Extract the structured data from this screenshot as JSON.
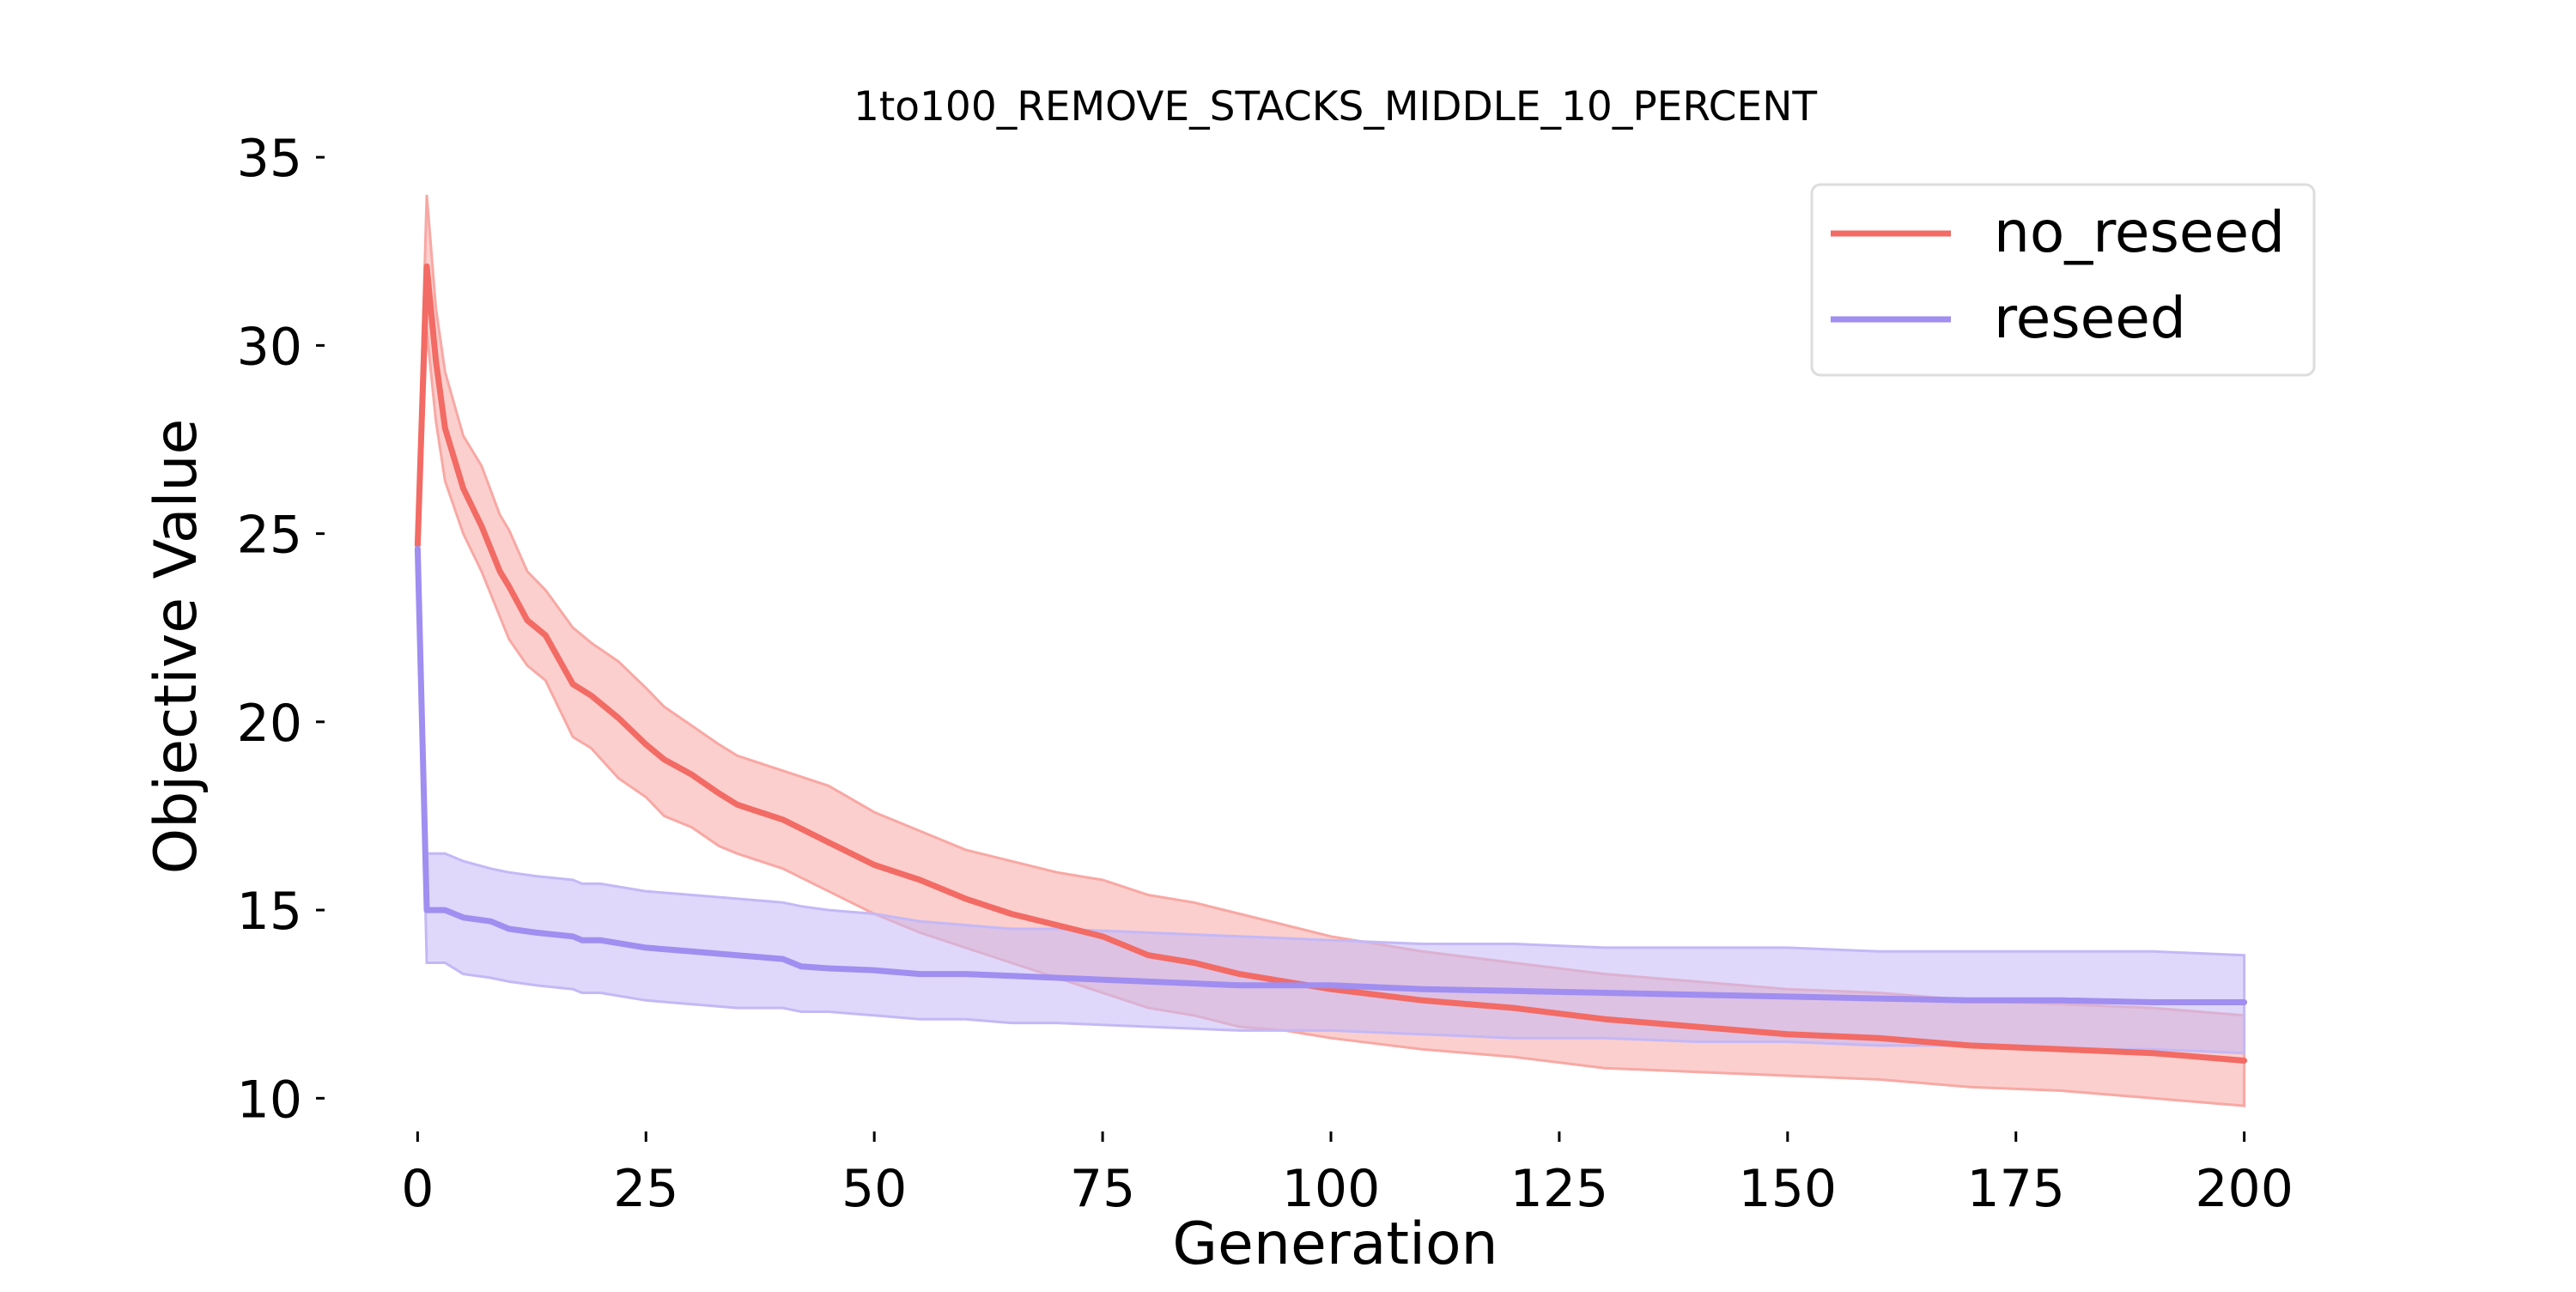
{
  "chart_data": {
    "type": "line",
    "title": "1to100_REMOVE_STACKS_MIDDLE_10_PERCENT",
    "xlabel": "Generation",
    "ylabel": "Objective Value",
    "xlim": [
      -10,
      210
    ],
    "ylim": [
      9.3,
      35.3
    ],
    "xticks": [
      0,
      25,
      50,
      75,
      100,
      125,
      150,
      175,
      200
    ],
    "yticks": [
      10,
      15,
      20,
      25,
      30,
      35
    ],
    "grid": false,
    "legend_position": "top-right",
    "series": [
      {
        "name": "no_reseed",
        "color": "#f26b64",
        "band_color": "#f8a8a4",
        "x": [
          0,
          1,
          2,
          3,
          5,
          7,
          9,
          10,
          12,
          14,
          17,
          19,
          22,
          25,
          27,
          30,
          33,
          35,
          40,
          45,
          50,
          55,
          60,
          65,
          70,
          75,
          80,
          85,
          90,
          95,
          100,
          110,
          120,
          130,
          140,
          150,
          160,
          170,
          180,
          190,
          200
        ],
        "mean": [
          24.7,
          32.1,
          29.6,
          27.8,
          26.2,
          25.2,
          24.0,
          23.6,
          22.7,
          22.3,
          21.0,
          20.7,
          20.1,
          19.4,
          19.0,
          18.6,
          18.1,
          17.8,
          17.4,
          16.8,
          16.2,
          15.8,
          15.3,
          14.9,
          14.6,
          14.3,
          13.8,
          13.6,
          13.3,
          13.1,
          12.9,
          12.6,
          12.4,
          12.1,
          11.9,
          11.7,
          11.6,
          11.4,
          11.3,
          11.2,
          11.0
        ],
        "upper": [
          25.5,
          34.0,
          31.0,
          29.3,
          27.6,
          26.8,
          25.5,
          25.1,
          24.0,
          23.5,
          22.5,
          22.1,
          21.6,
          20.9,
          20.4,
          19.9,
          19.4,
          19.1,
          18.7,
          18.3,
          17.6,
          17.1,
          16.6,
          16.3,
          16.0,
          15.8,
          15.4,
          15.2,
          14.9,
          14.6,
          14.3,
          13.9,
          13.6,
          13.3,
          13.1,
          12.9,
          12.8,
          12.6,
          12.5,
          12.4,
          12.2
        ],
        "lower": [
          24.0,
          30.4,
          28.0,
          26.4,
          25.0,
          24.0,
          22.8,
          22.2,
          21.5,
          21.1,
          19.6,
          19.3,
          18.5,
          18.0,
          17.5,
          17.2,
          16.7,
          16.5,
          16.1,
          15.5,
          14.9,
          14.4,
          14.0,
          13.6,
          13.2,
          12.8,
          12.4,
          12.2,
          11.9,
          11.8,
          11.6,
          11.3,
          11.1,
          10.8,
          10.7,
          10.6,
          10.5,
          10.3,
          10.2,
          10.0,
          9.8
        ]
      },
      {
        "name": "reseed",
        "color": "#a08ef0",
        "band_color": "#c4b8f6",
        "x": [
          0,
          1,
          2,
          3,
          5,
          8,
          10,
          13,
          17,
          18,
          20,
          25,
          30,
          35,
          40,
          42,
          45,
          50,
          55,
          60,
          65,
          70,
          80,
          90,
          100,
          110,
          120,
          130,
          140,
          150,
          160,
          170,
          180,
          190,
          200
        ],
        "mean": [
          24.6,
          15.0,
          15.0,
          15.0,
          14.8,
          14.7,
          14.5,
          14.4,
          14.3,
          14.2,
          14.2,
          14.0,
          13.9,
          13.8,
          13.7,
          13.5,
          13.45,
          13.4,
          13.3,
          13.3,
          13.25,
          13.2,
          13.1,
          13.0,
          13.0,
          12.9,
          12.85,
          12.8,
          12.75,
          12.7,
          12.65,
          12.6,
          12.6,
          12.55,
          12.55
        ],
        "upper": [
          25.3,
          16.5,
          16.5,
          16.5,
          16.3,
          16.1,
          16.0,
          15.9,
          15.8,
          15.7,
          15.7,
          15.5,
          15.4,
          15.3,
          15.2,
          15.1,
          15.0,
          14.9,
          14.7,
          14.6,
          14.5,
          14.5,
          14.4,
          14.3,
          14.2,
          14.1,
          14.1,
          14.0,
          14.0,
          14.0,
          13.9,
          13.9,
          13.9,
          13.9,
          13.8
        ],
        "lower": [
          24.0,
          13.6,
          13.6,
          13.6,
          13.3,
          13.2,
          13.1,
          13.0,
          12.9,
          12.8,
          12.8,
          12.6,
          12.5,
          12.4,
          12.4,
          12.3,
          12.3,
          12.2,
          12.1,
          12.1,
          12.0,
          12.0,
          11.9,
          11.8,
          11.8,
          11.7,
          11.6,
          11.6,
          11.5,
          11.5,
          11.4,
          11.4,
          11.3,
          11.3,
          11.2
        ]
      }
    ]
  }
}
